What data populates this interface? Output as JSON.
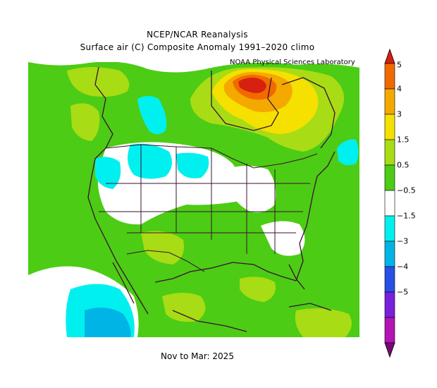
{
  "title_line1": "NCEP/NCAR Reanalysis",
  "title_line2": "Surface air (C) Composite Anomaly 1991–2020 climo",
  "credit": "NOAA Physical Sciences Laboratory",
  "period": "Nov to Mar: 2025",
  "colorbar": {
    "unit": "C",
    "labels": [
      "5",
      "4",
      "3",
      "1.5",
      "0.5",
      "−0.5",
      "−1.5",
      "−3",
      "−4",
      "−5"
    ],
    "colors": [
      "#d62010",
      "#f06a00",
      "#f5a800",
      "#f5e000",
      "#a8dc14",
      "#4ccc14",
      "#ffffff",
      "#00f0f0",
      "#00b4e6",
      "#2850e6",
      "#7820dc",
      "#b414b4",
      "#780a78"
    ]
  },
  "map": {
    "region": "North America",
    "colors": {
      "land_outline": "#3a1030",
      "near_zero": "#ffffff",
      "weak_warm": "#4ccc14",
      "moderate_warm": "#a8dc14",
      "warm": "#f5e000",
      "strong_warm": "#f5a800",
      "very_warm": "#f06a00",
      "extreme_warm": "#d62010",
      "weak_cool": "#00f0f0",
      "moderate_cool": "#00b4e6"
    }
  }
}
